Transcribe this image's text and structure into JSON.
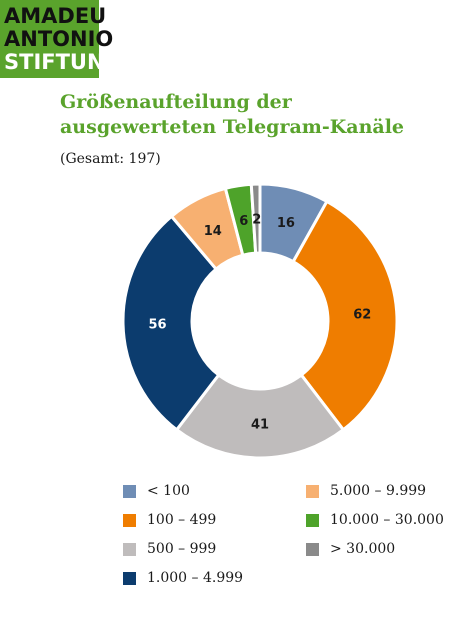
{
  "logo": {
    "line1": "AMADEU",
    "line2": "ANTONIO",
    "line3": "STIFTUNG"
  },
  "chart_data": {
    "type": "pie",
    "title": "Größenaufteilung der ausgewerteten Telegram-Kanäle",
    "subtitle": "(Gesamt: 197)",
    "donut": true,
    "legend_position": "bottom",
    "slices": [
      {
        "label": "< 100",
        "value": 16,
        "color": "#6f8db5"
      },
      {
        "label": "100 – 499",
        "value": 62,
        "color": "#ef7d00"
      },
      {
        "label": "500 – 999",
        "value": 41,
        "color": "#bfbcbc"
      },
      {
        "label": "1.000 – 4.999",
        "value": 56,
        "color": "#0c3c6e"
      },
      {
        "label": "5.000 – 9.999",
        "value": 14,
        "color": "#f7b071"
      },
      {
        "label": "10.000 – 30.000",
        "value": 6,
        "color": "#4ea32a"
      },
      {
        "label": "> 30.000",
        "value": 2,
        "color": "#8a8a8a"
      }
    ]
  }
}
